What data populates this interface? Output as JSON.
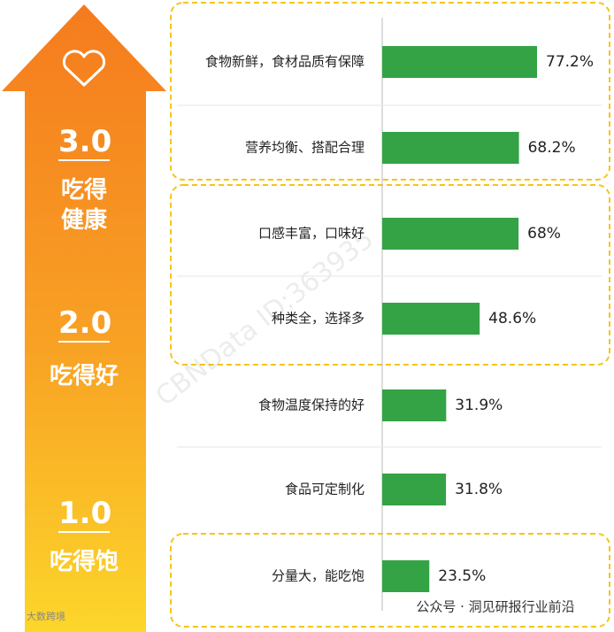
{
  "chart_data": {
    "type": "bar",
    "orientation": "horizontal",
    "categories": [
      "食物新鲜，食材品质有保障",
      "营养均衡、搭配合理",
      "口感丰富，口味好",
      "种类全，选择多",
      "食物温度保持的好",
      "食品可定制化",
      "分量大，能吃饱"
    ],
    "values": [
      77.2,
      68.2,
      68,
      48.6,
      31.9,
      31.8,
      23.5
    ],
    "value_labels": [
      "77.2%",
      "68.2%",
      "68%",
      "48.6%",
      "31.9%",
      "31.8%",
      "23.5%"
    ],
    "color": "#34a346",
    "levels": [
      {
        "score": "3.0",
        "label": "吃得健康"
      },
      {
        "score": "2.0",
        "label": "吃得好"
      },
      {
        "score": "1.0",
        "label": "吃得饱"
      }
    ],
    "watermark": "CBNData ID:363935",
    "footer": "公众号 · 洞见研报行业前沿",
    "source_mark": "大数跨境"
  }
}
